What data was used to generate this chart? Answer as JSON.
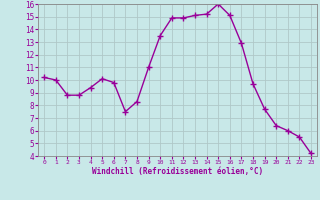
{
  "x": [
    0,
    1,
    2,
    3,
    4,
    5,
    6,
    7,
    8,
    9,
    10,
    11,
    12,
    13,
    14,
    15,
    16,
    17,
    18,
    19,
    20,
    21,
    22,
    23
  ],
  "y": [
    10.2,
    10.0,
    8.8,
    8.8,
    9.4,
    10.1,
    9.8,
    7.5,
    8.3,
    11.0,
    13.5,
    14.9,
    14.9,
    15.1,
    15.2,
    16.0,
    15.1,
    12.9,
    9.7,
    7.7,
    6.4,
    6.0,
    5.5,
    4.2
  ],
  "line_color": "#990099",
  "marker": "+",
  "marker_size": 4,
  "bg_color": "#c8e8e8",
  "grid_color": "#b0c8c8",
  "xlabel": "Windchill (Refroidissement éolien,°C)",
  "xlabel_color": "#990099",
  "tick_color": "#990099",
  "ylim": [
    4,
    16
  ],
  "xlim": [
    -0.5,
    23.5
  ],
  "yticks": [
    4,
    5,
    6,
    7,
    8,
    9,
    10,
    11,
    12,
    13,
    14,
    15,
    16
  ],
  "xticks": [
    0,
    1,
    2,
    3,
    4,
    5,
    6,
    7,
    8,
    9,
    10,
    11,
    12,
    13,
    14,
    15,
    16,
    17,
    18,
    19,
    20,
    21,
    22,
    23
  ],
  "linewidth": 1.0,
  "spine_color": "#888888",
  "title": ""
}
